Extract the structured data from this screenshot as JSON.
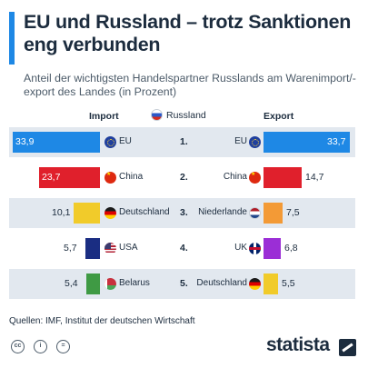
{
  "header": {
    "title": "EU und Russland – trotz Sanktionen eng verbunden",
    "subtitle": "Anteil der wichtigsten Handelspartner Russlands am Warenimport/-export des Landes (in Prozent)"
  },
  "columns": {
    "import": "Import",
    "center": "Russland",
    "export": "Export"
  },
  "source": "Quellen: IMF, Institut der deutschen Wirtschaft",
  "brand": "statista",
  "icons": {
    "center_flag": "russia-flag-icon",
    "license": [
      "cc-icon",
      "person-icon",
      "equals-icon"
    ]
  },
  "colors": {
    "EU": "#1e88e5",
    "China": "#e0202c",
    "Deutschland": "#f1cb2a",
    "USA": "#1a2d82",
    "Belarus": "#3f9a44",
    "Niederlande": "#f39a36",
    "UK": "#9b2ed6",
    "Deutschland_export": "#f1cb2a"
  },
  "chart_data": {
    "type": "bar",
    "title": "EU und Russland – trotz Sanktionen eng verbunden",
    "subtitle": "Anteil der wichtigsten Handelspartner Russlands am Warenimport/-export des Landes (in Prozent)",
    "ranks": [
      "1.",
      "2.",
      "3.",
      "4.",
      "5."
    ],
    "import": [
      {
        "partner": "EU",
        "value": 33.9,
        "value_label": "33,9",
        "flag": "eu-flag-icon",
        "color": "#1e88e5"
      },
      {
        "partner": "China",
        "value": 23.7,
        "value_label": "23,7",
        "flag": "china-flag-icon",
        "color": "#e0202c"
      },
      {
        "partner": "Deutschland",
        "value": 10.1,
        "value_label": "10,1",
        "flag": "germany-flag-icon",
        "color": "#f1cb2a"
      },
      {
        "partner": "USA",
        "value": 5.7,
        "value_label": "5,7",
        "flag": "usa-flag-icon",
        "color": "#1a2d82"
      },
      {
        "partner": "Belarus",
        "value": 5.4,
        "value_label": "5,4",
        "flag": "belarus-flag-icon",
        "color": "#3f9a44"
      }
    ],
    "export": [
      {
        "partner": "EU",
        "value": 33.7,
        "value_label": "33,7",
        "flag": "eu-flag-icon",
        "color": "#1e88e5"
      },
      {
        "partner": "China",
        "value": 14.7,
        "value_label": "14,7",
        "flag": "china-flag-icon",
        "color": "#e0202c"
      },
      {
        "partner": "Niederlande",
        "value": 7.5,
        "value_label": "7,5",
        "flag": "netherlands-flag-icon",
        "color": "#f39a36"
      },
      {
        "partner": "UK",
        "value": 6.8,
        "value_label": "6,8",
        "flag": "uk-flag-icon",
        "color": "#9b2ed6"
      },
      {
        "partner": "Deutschland",
        "value": 5.5,
        "value_label": "5,5",
        "flag": "germany-flag-icon",
        "color": "#f1cb2a"
      }
    ]
  }
}
